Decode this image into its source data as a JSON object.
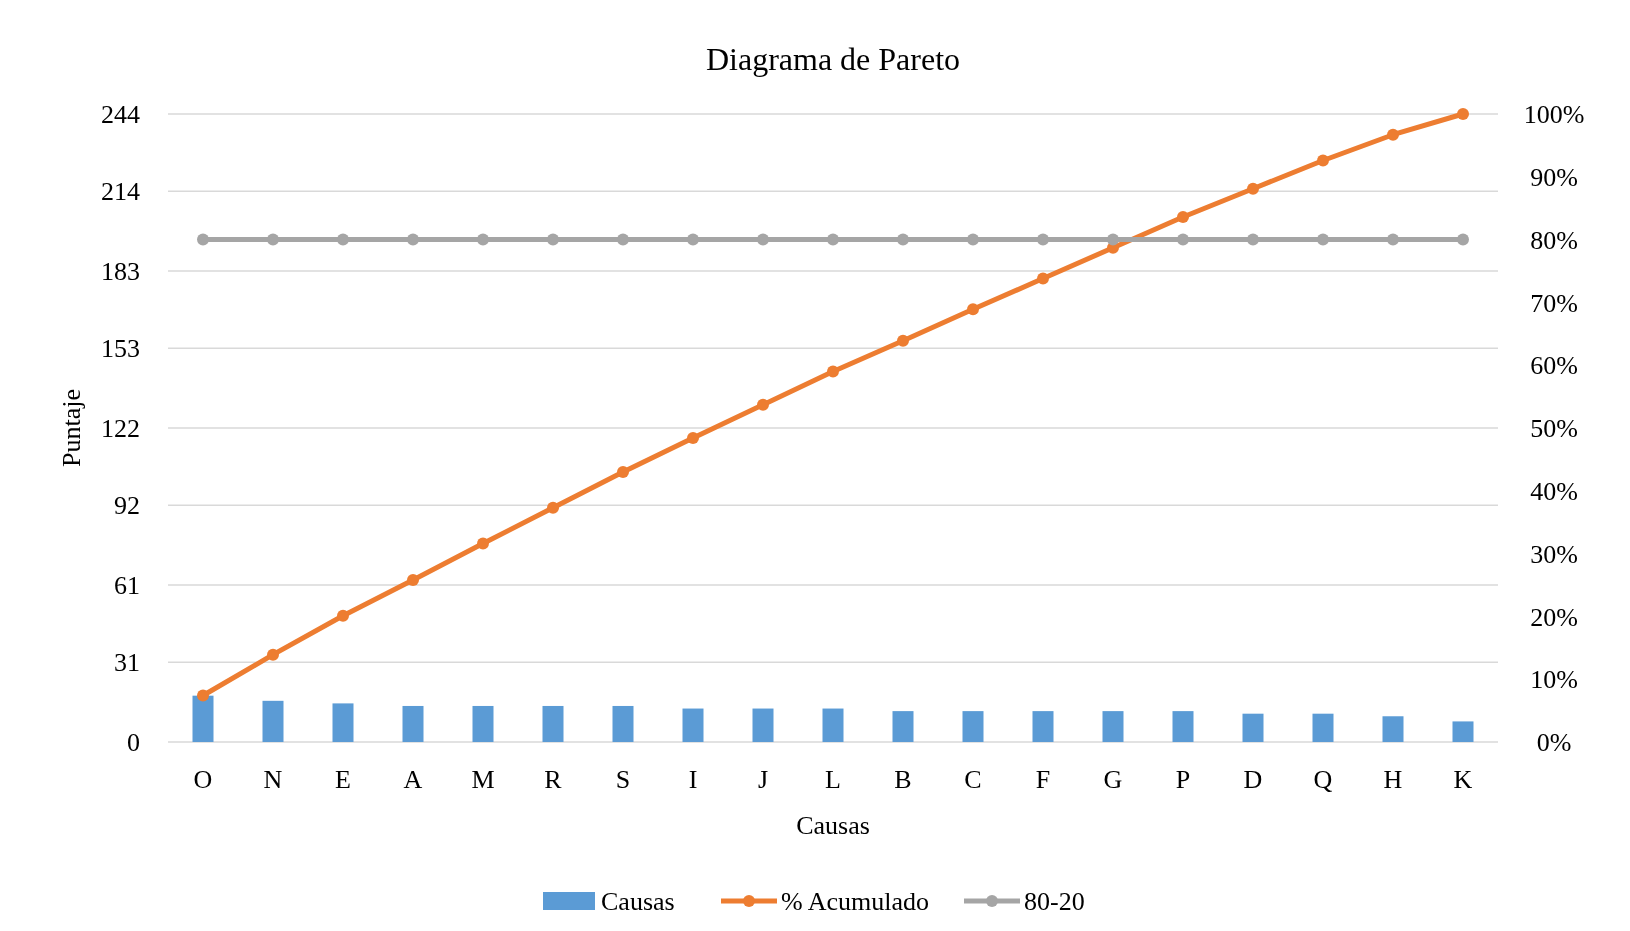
{
  "chart_data": {
    "type": "bar",
    "title": "Diagrama de Pareto",
    "xlabel": "Causas",
    "ylabel": "Puntaje",
    "categories": [
      "O",
      "N",
      "E",
      "A",
      "M",
      "R",
      "S",
      "I",
      "J",
      "L",
      "B",
      "C",
      "F",
      "G",
      "P",
      "D",
      "Q",
      "H",
      "K"
    ],
    "series": [
      {
        "name": "Causas",
        "color": "#5b9bd5",
        "values": [
          18,
          16,
          15,
          14,
          14,
          14,
          14,
          13,
          13,
          13,
          12,
          12,
          12,
          12,
          12,
          11,
          11,
          10,
          8
        ]
      },
      {
        "name": "% Acumulado",
        "type": "line",
        "axis": "y2",
        "color": "#ed7d31",
        "values": [
          7.4,
          13.9,
          20.1,
          25.8,
          31.6,
          37.3,
          43.0,
          48.4,
          53.7,
          59.0,
          63.9,
          68.9,
          73.8,
          78.7,
          83.6,
          88.1,
          92.6,
          96.7,
          100
        ]
      },
      {
        "name": "80-20",
        "type": "line",
        "axis": "y2",
        "color": "#a5a5a5",
        "values": [
          80,
          80,
          80,
          80,
          80,
          80,
          80,
          80,
          80,
          80,
          80,
          80,
          80,
          80,
          80,
          80,
          80,
          80,
          80
        ]
      }
    ],
    "ylim": [
      0,
      244
    ],
    "yticks": [
      0,
      31,
      61,
      92,
      122,
      153,
      183,
      214,
      244
    ],
    "y2lim": [
      0,
      100
    ],
    "y2ticks": [
      {
        "value": 0,
        "label": "0%"
      },
      {
        "value": 10,
        "label": "10%"
      },
      {
        "value": 20,
        "label": "20%"
      },
      {
        "value": 30,
        "label": "30%"
      },
      {
        "value": 40,
        "label": "40%"
      },
      {
        "value": 50,
        "label": "50%"
      },
      {
        "value": 60,
        "label": "60%"
      },
      {
        "value": 70,
        "label": "70%"
      },
      {
        "value": 80,
        "label": "80%"
      },
      {
        "value": 90,
        "label": "90%"
      },
      {
        "value": 100,
        "label": "100%"
      }
    ],
    "grid": "y",
    "legend": "bottom",
    "marker": "circle",
    "line_style": "solid"
  }
}
